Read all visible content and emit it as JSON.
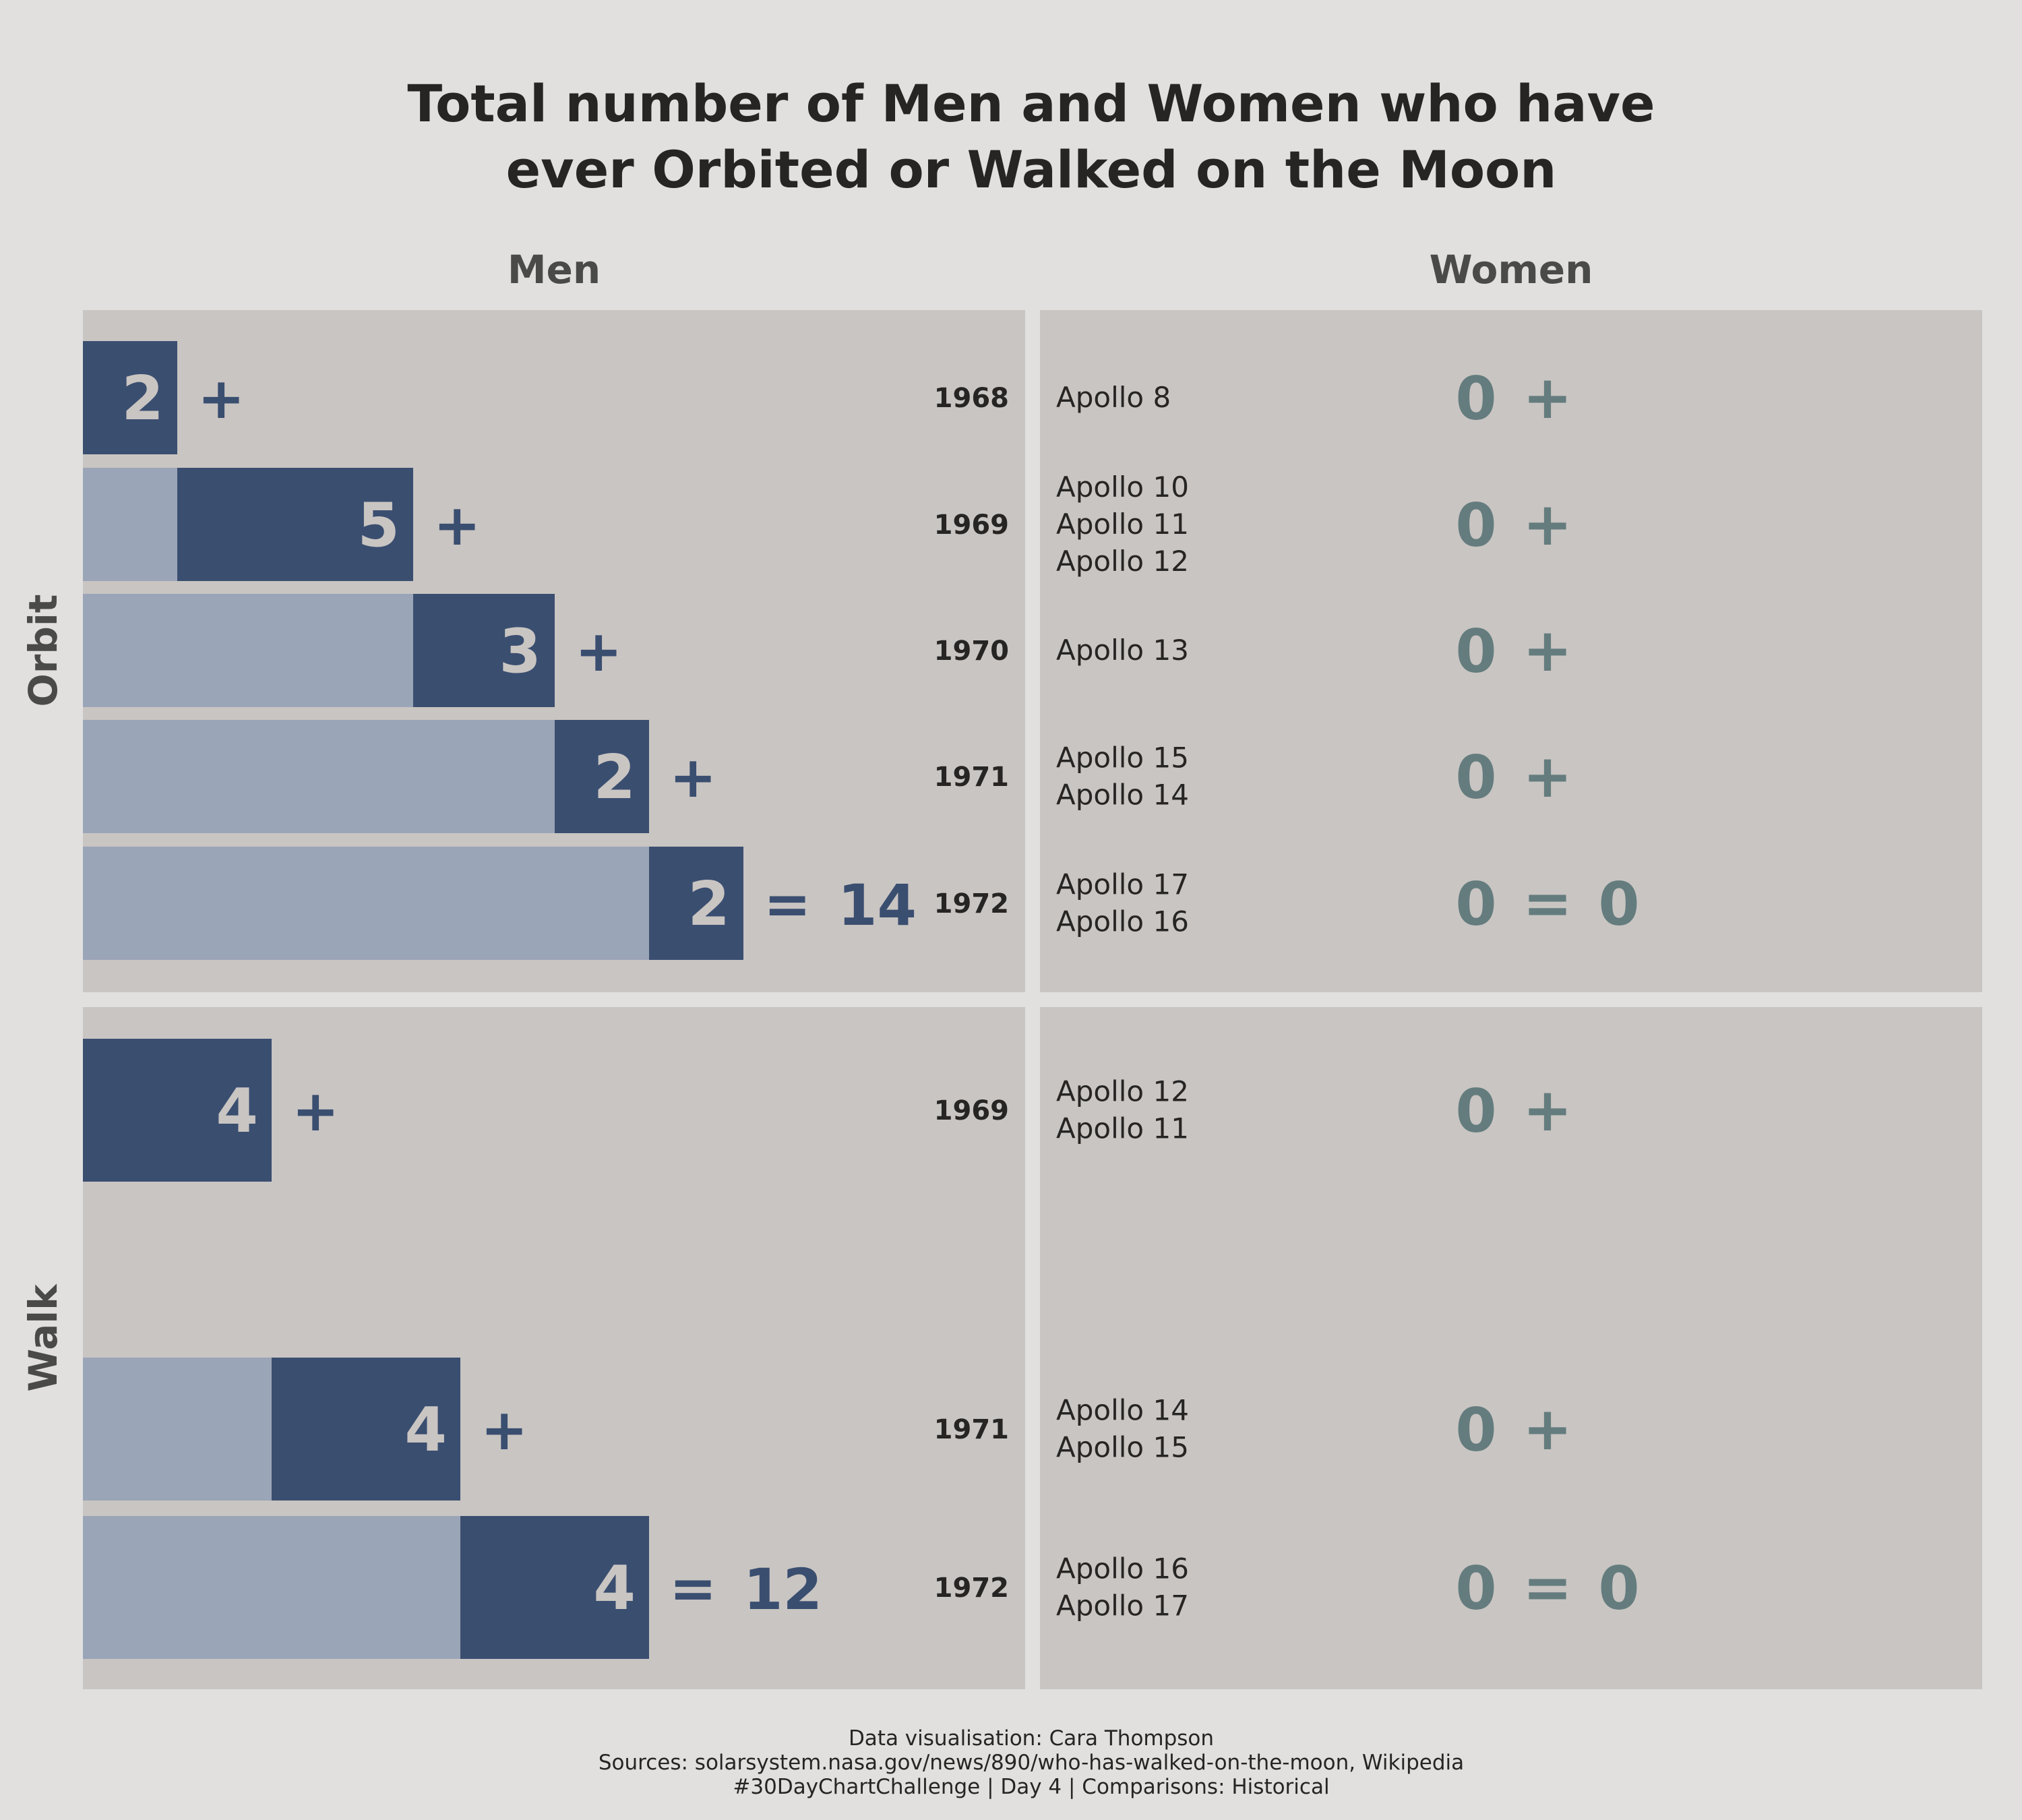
{
  "chart_data": {
    "type": "bar",
    "title_lines": [
      "Total number of Men and Women who have",
      "ever Orbited or Walked on the Moon"
    ],
    "columns": [
      "Men",
      "Women"
    ],
    "rows": [
      "Orbit",
      "Walk"
    ],
    "xlim": [
      0,
      14
    ],
    "panels": [
      {
        "row": "Orbit",
        "total_men": "14",
        "total_women": "0",
        "entries": [
          {
            "year": "1968",
            "missions": [
              "Apollo 8"
            ],
            "men": 2,
            "men_label": "2",
            "women": 0,
            "women_label": "0",
            "prev_cum": 0
          },
          {
            "year": "1969",
            "missions": [
              "Apollo 10",
              "Apollo 11",
              "Apollo 12"
            ],
            "men": 5,
            "men_label": "5",
            "women": 0,
            "women_label": "0",
            "prev_cum": 2
          },
          {
            "year": "1970",
            "missions": [
              "Apollo 13"
            ],
            "men": 3,
            "men_label": "3",
            "women": 0,
            "women_label": "0",
            "prev_cum": 7
          },
          {
            "year": "1971",
            "missions": [
              "Apollo 15",
              "Apollo 14"
            ],
            "men": 2,
            "men_label": "2",
            "women": 0,
            "women_label": "0",
            "prev_cum": 10
          },
          {
            "year": "1972",
            "missions": [
              "Apollo 17",
              "Apollo 16"
            ],
            "men": 2,
            "men_label": "2",
            "women": 0,
            "women_label": "0",
            "prev_cum": 12
          }
        ]
      },
      {
        "row": "Walk",
        "total_men": "12",
        "total_women": "0",
        "entries": [
          {
            "year": "1969",
            "missions": [
              "Apollo 12",
              "Apollo 11"
            ],
            "men": 4,
            "men_label": "4",
            "women": 0,
            "women_label": "0",
            "prev_cum": 0
          },
          {
            "year": "1971",
            "missions": [
              "Apollo 14",
              "Apollo 15"
            ],
            "men": 4,
            "men_label": "4",
            "women": 0,
            "women_label": "0",
            "prev_cum": 4
          },
          {
            "year": "1972",
            "missions": [
              "Apollo 16",
              "Apollo 17"
            ],
            "men": 4,
            "men_label": "4",
            "women": 0,
            "women_label": "0",
            "prev_cum": 8
          }
        ]
      }
    ],
    "operators": {
      "plus": "+",
      "equals": "="
    },
    "caption_lines": [
      "Data visualisation: Cara Thompson",
      "Sources: solarsystem.nasa.gov/news/890/who-has-walked-on-the-moon, Wikipedia",
      "#30DayChartChallenge | Day 4 | Comparisons: Historical"
    ],
    "colors": {
      "background": "#e1e0df",
      "panel": "#c9c5c2",
      "bar_new": "#3a4e70",
      "bar_previous": "#9ba5b8",
      "women_text": "#647c7e",
      "text": "#262524",
      "strip_text": "#4a4a48"
    }
  }
}
